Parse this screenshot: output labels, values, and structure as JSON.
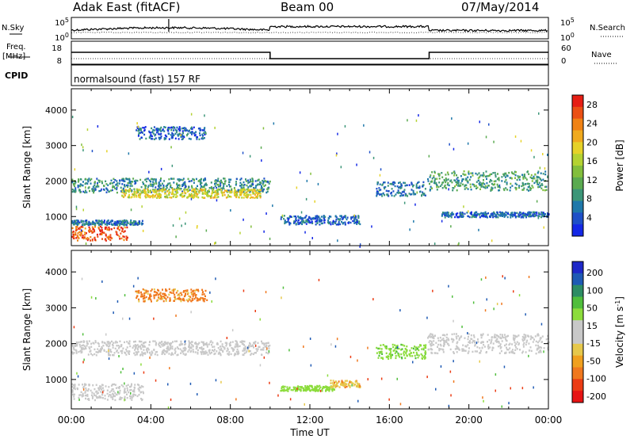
{
  "header": {
    "station": "Adak East (fitACF)",
    "beam": "Beam 00",
    "date": "07/May/2014"
  },
  "panels": {
    "nsky_label": "N.Sky",
    "nsearch_label": "N.Search",
    "freq_label_line1": "Freq.",
    "freq_label_line2": "[MHz]",
    "nave_label": "Nave",
    "cpid_label": "CPID",
    "cpid_text": "normalsound (fast) 157 RF",
    "noise_left_ticks": [
      "10^5",
      "10^0"
    ],
    "noise_right_ticks": [
      "10^5",
      "10^0"
    ],
    "freq_ticks": [
      "18",
      "8"
    ],
    "nave_ticks": [
      "60",
      "0"
    ]
  },
  "chart_data": [
    {
      "type": "heatmap",
      "name": "power",
      "ylabel": "Slant Range [km]",
      "xlabel": "Time UT",
      "x_ticks": [
        "00:00",
        "04:00",
        "08:00",
        "12:00",
        "16:00",
        "20:00",
        "00:00"
      ],
      "y_ticks": [
        1000,
        2000,
        3000,
        4000
      ],
      "ylim": [
        180,
        4600
      ],
      "xlim_hours": [
        0,
        24
      ],
      "colorbar": {
        "label": "Power [dB]",
        "ticks": [
          4,
          8,
          12,
          16,
          20,
          24,
          28
        ],
        "range": [
          0,
          30
        ],
        "colors": [
          "#1428e6",
          "#1e50c8",
          "#1e78aa",
          "#3c9678",
          "#5aaa50",
          "#82be3c",
          "#b4d232",
          "#e6d228",
          "#f0aa1e",
          "#f08214",
          "#eb5014",
          "#e61e14"
        ]
      },
      "features": [
        {
          "t": [
            0.0,
            10.0
          ],
          "range": [
            1700,
            2100
          ],
          "value": 8
        },
        {
          "t": [
            2.5,
            9.5
          ],
          "range": [
            1550,
            1800
          ],
          "value": 18
        },
        {
          "t": [
            0.0,
            2.8
          ],
          "range": [
            350,
            750
          ],
          "value": 26
        },
        {
          "t": [
            0.0,
            3.6
          ],
          "range": [
            780,
            920
          ],
          "value": 6
        },
        {
          "t": [
            3.2,
            6.8
          ],
          "range": [
            3200,
            3550
          ],
          "value": 5
        },
        {
          "t": [
            10.5,
            14.5
          ],
          "range": [
            800,
            1050
          ],
          "value": 5
        },
        {
          "t": [
            15.3,
            17.8
          ],
          "range": [
            1600,
            2000
          ],
          "value": 6
        },
        {
          "t": [
            17.9,
            24.0
          ],
          "range": [
            1750,
            2300
          ],
          "value": 10
        },
        {
          "t": [
            18.6,
            24.0
          ],
          "range": [
            1000,
            1150
          ],
          "value": 5
        }
      ]
    },
    {
      "type": "heatmap",
      "name": "velocity",
      "ylabel": "Slant Range [km]",
      "xlabel": "Time UT",
      "x_ticks": [
        "00:00",
        "04:00",
        "08:00",
        "12:00",
        "16:00",
        "20:00",
        "00:00"
      ],
      "y_ticks": [
        1000,
        2000,
        3000,
        4000
      ],
      "ylim": [
        180,
        4600
      ],
      "xlim_hours": [
        0,
        24
      ],
      "colorbar": {
        "label": "Velocity [m s",
        "label_sup": "-1",
        "label_end": "]",
        "ticks": [
          "200",
          "100",
          "50",
          "15",
          "-15",
          "-50",
          "-100",
          "-200"
        ],
        "colors": [
          "#1e28c8",
          "#1e5ab4",
          "#2d8c64",
          "#50be3c",
          "#8cdc3c",
          "#c8c8c8",
          "#c8c8c8",
          "#e6c84b",
          "#f0a01e",
          "#f0781e",
          "#eb3c14",
          "#e61414"
        ]
      },
      "features": [
        {
          "t": [
            0.0,
            10.0
          ],
          "range": [
            1700,
            2100
          ],
          "value": 0
        },
        {
          "t": [
            0.0,
            3.6
          ],
          "range": [
            450,
            900
          ],
          "value": 0
        },
        {
          "t": [
            3.2,
            6.8
          ],
          "range": [
            3200,
            3550
          ],
          "value": -60
        },
        {
          "t": [
            10.5,
            13.2
          ],
          "range": [
            700,
            850
          ],
          "value": 30
        },
        {
          "t": [
            13.0,
            14.5
          ],
          "range": [
            800,
            1000
          ],
          "value": -40
        },
        {
          "t": [
            15.3,
            17.8
          ],
          "range": [
            1600,
            2000
          ],
          "value": 40
        },
        {
          "t": [
            17.9,
            24.0
          ],
          "range": [
            1750,
            2300
          ],
          "value": 0
        }
      ]
    }
  ]
}
